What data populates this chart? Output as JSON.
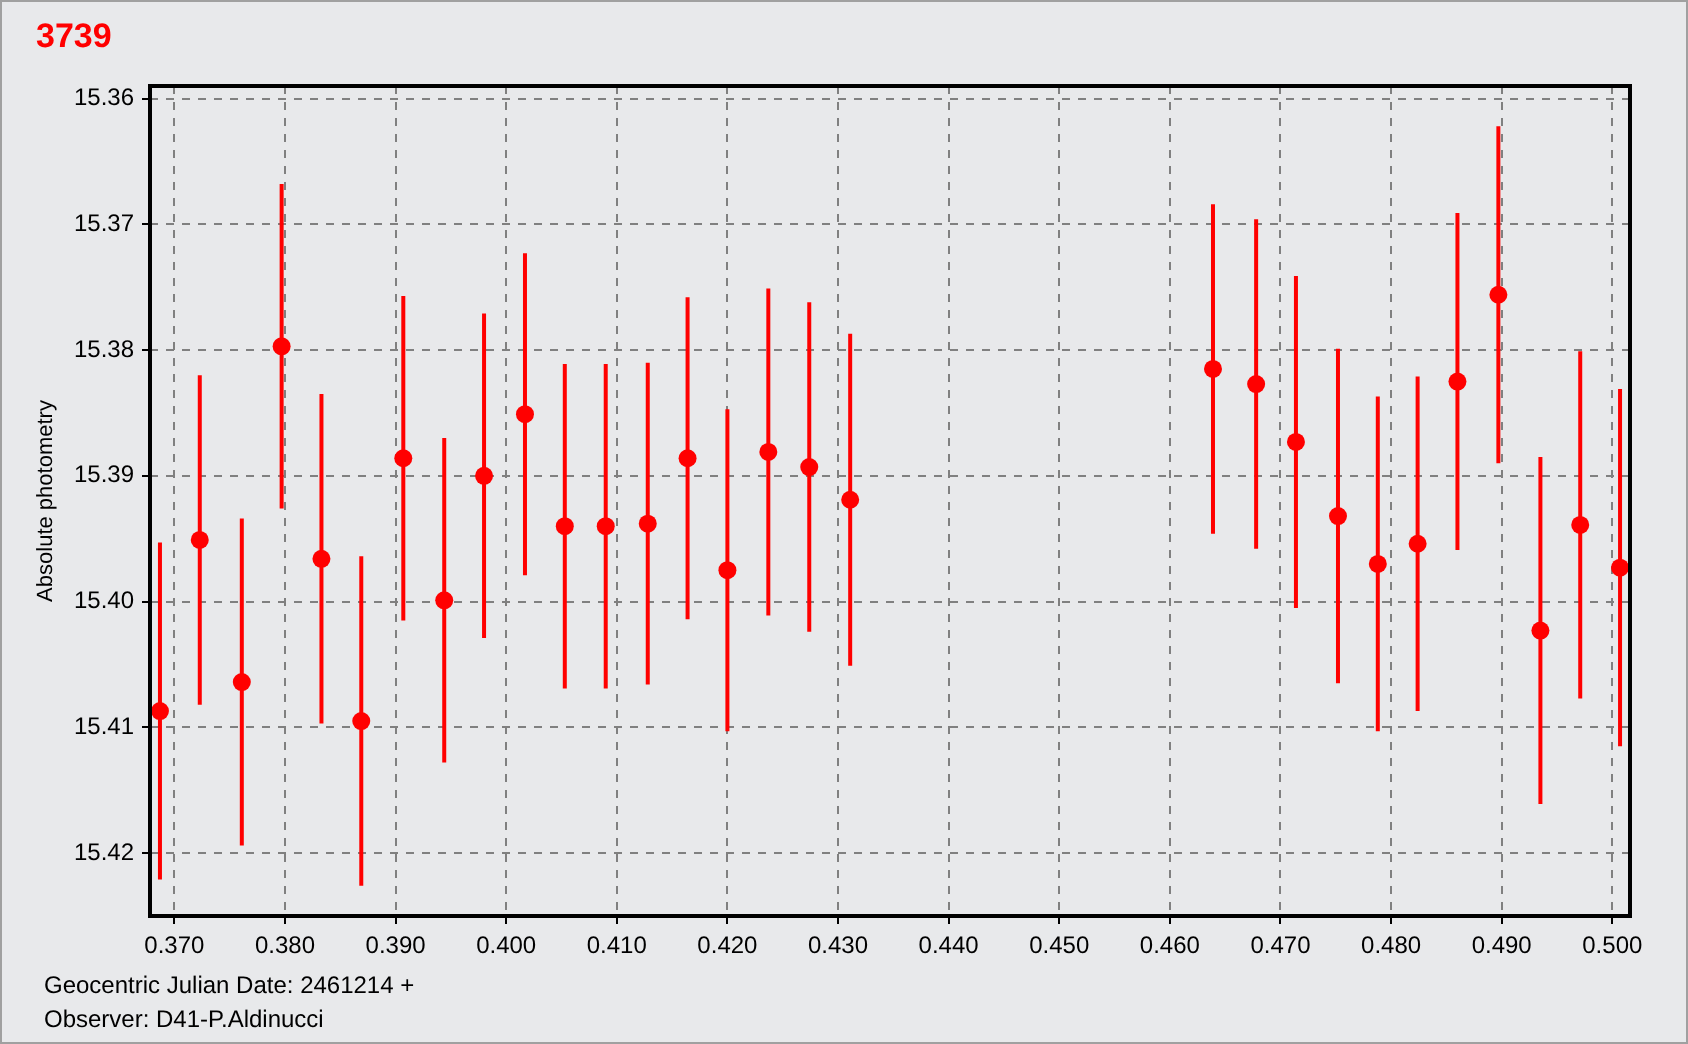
{
  "chart_data": {
    "type": "scatter",
    "title": "3739",
    "xlabel": "Geocentric Julian Date: 2461214 +",
    "ylabel": "Absolute photometry",
    "annotations": [
      "Observer: D41-P.Aldinucci"
    ],
    "x": [
      0.3687,
      0.3723,
      0.3761,
      0.3797,
      0.3833,
      0.3869,
      0.3907,
      0.3944,
      0.398,
      0.4017,
      0.4053,
      0.409,
      0.4128,
      0.4164,
      0.42,
      0.4237,
      0.4274,
      0.4311,
      0.4639,
      0.4678,
      0.4714,
      0.4752,
      0.4788,
      0.4824,
      0.486,
      0.4897,
      0.4935,
      0.4971,
      0.5007
    ],
    "series": [
      {
        "color": "#ff0000",
        "values": [
          15.4087,
          15.3951,
          15.4064,
          15.3797,
          15.3966,
          15.4095,
          15.3886,
          15.3999,
          15.39,
          15.3851,
          15.394,
          15.394,
          15.3938,
          15.3886,
          15.3975,
          15.3881,
          15.3893,
          15.3919,
          15.3815,
          15.3827,
          15.3873,
          15.3932,
          15.397,
          15.3954,
          15.3825,
          15.3756,
          15.4023,
          15.3939,
          15.3973
        ],
        "errors": [
          0.0134,
          0.0131,
          0.013,
          0.0129,
          0.0131,
          0.0131,
          0.0129,
          0.0129,
          0.0129,
          0.0128,
          0.0129,
          0.0129,
          0.0128,
          0.0128,
          0.0128,
          0.013,
          0.0131,
          0.0132,
          0.0131,
          0.0131,
          0.0132,
          0.0133,
          0.0133,
          0.0133,
          0.0134,
          0.0134,
          0.0138,
          0.0138,
          0.0142
        ]
      }
    ],
    "xlim": [
      0.3678,
      0.5016
    ],
    "ylim": [
      15.425,
      15.359
    ],
    "xticks": [
      {
        "value": 0.37,
        "label": "0.370"
      },
      {
        "value": 0.38,
        "label": "0.380"
      },
      {
        "value": 0.39,
        "label": "0.390"
      },
      {
        "value": 0.4,
        "label": "0.400"
      },
      {
        "value": 0.41,
        "label": "0.410"
      },
      {
        "value": 0.42,
        "label": "0.420"
      },
      {
        "value": 0.43,
        "label": "0.430"
      },
      {
        "value": 0.44,
        "label": "0.440"
      },
      {
        "value": 0.45,
        "label": "0.450"
      },
      {
        "value": 0.46,
        "label": "0.460"
      },
      {
        "value": 0.47,
        "label": "0.470"
      },
      {
        "value": 0.48,
        "label": "0.480"
      },
      {
        "value": 0.49,
        "label": "0.490"
      },
      {
        "value": 0.5,
        "label": "0.500"
      }
    ],
    "yticks": [
      15.36,
      15.37,
      15.38,
      15.39,
      {
        "value": 15.4,
        "label": "15.40"
      },
      15.41,
      15.42
    ],
    "grid": true,
    "marker": "circle"
  }
}
